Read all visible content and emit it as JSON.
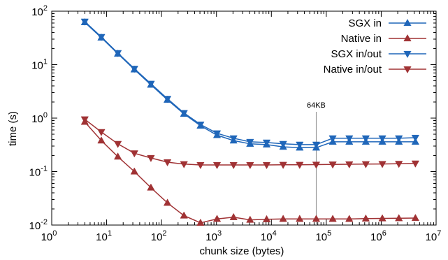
{
  "chart_data": {
    "type": "line",
    "xscale": "log",
    "yscale": "log",
    "xlim": [
      1,
      10000000
    ],
    "ylim": [
      0.01,
      100
    ],
    "xlabel": "chunk size (bytes)",
    "ylabel": "time (s)",
    "grid": false,
    "legend_position": "top-right",
    "x_ticks": [
      {
        "base": "10",
        "exp": "0",
        "value": 1
      },
      {
        "base": "10",
        "exp": "1",
        "value": 10
      },
      {
        "base": "10",
        "exp": "2",
        "value": 100
      },
      {
        "base": "10",
        "exp": "3",
        "value": 1000
      },
      {
        "base": "10",
        "exp": "4",
        "value": 10000
      },
      {
        "base": "10",
        "exp": "5",
        "value": 100000
      },
      {
        "base": "10",
        "exp": "6",
        "value": 1000000
      },
      {
        "base": "10",
        "exp": "7",
        "value": 10000000
      }
    ],
    "y_ticks": [
      {
        "base": "10",
        "exp": "-2",
        "value": 0.01
      },
      {
        "base": "10",
        "exp": "-1",
        "value": 0.1
      },
      {
        "base": "10",
        "exp": "0",
        "value": 1
      },
      {
        "base": "10",
        "exp": "1",
        "value": 10
      },
      {
        "base": "10",
        "exp": "2",
        "value": 100
      }
    ],
    "annotation": {
      "text": "64KB",
      "x": 65536
    },
    "x": [
      4,
      8,
      16,
      32,
      64,
      128,
      256,
      512,
      1024,
      2048,
      4096,
      8192,
      16384,
      32768,
      65536,
      131072,
      262144,
      524288,
      1048576,
      2097152,
      4194304
    ],
    "series": [
      {
        "name": "SGX in",
        "color": "#1f66b9",
        "marker": "triangle-up",
        "values": [
          62,
          32,
          16,
          8.1,
          4.2,
          2.2,
          1.2,
          0.72,
          0.48,
          0.38,
          0.33,
          0.32,
          0.29,
          0.28,
          0.28,
          0.36,
          0.36,
          0.36,
          0.36,
          0.36,
          0.36
        ]
      },
      {
        "name": "Native in",
        "color": "#a03234",
        "marker": "triangle-up",
        "values": [
          0.85,
          0.38,
          0.19,
          0.1,
          0.05,
          0.026,
          0.015,
          0.011,
          0.013,
          0.014,
          0.0125,
          0.0128,
          0.013,
          0.013,
          0.013,
          0.013,
          0.013,
          0.0132,
          0.0133,
          0.0134,
          0.0135
        ]
      },
      {
        "name": "SGX in/out",
        "color": "#1f66b9",
        "marker": "triangle-down",
        "values": [
          64,
          33,
          16.5,
          8.4,
          4.4,
          2.3,
          1.25,
          0.76,
          0.52,
          0.42,
          0.36,
          0.35,
          0.33,
          0.32,
          0.32,
          0.42,
          0.42,
          0.42,
          0.42,
          0.42,
          0.43
        ]
      },
      {
        "name": "Native in/out",
        "color": "#a03234",
        "marker": "triangle-down",
        "values": [
          0.95,
          0.55,
          0.33,
          0.22,
          0.18,
          0.15,
          0.138,
          0.133,
          0.133,
          0.133,
          0.133,
          0.133,
          0.134,
          0.134,
          0.135,
          0.136,
          0.137,
          0.138,
          0.139,
          0.14,
          0.142
        ]
      }
    ]
  }
}
